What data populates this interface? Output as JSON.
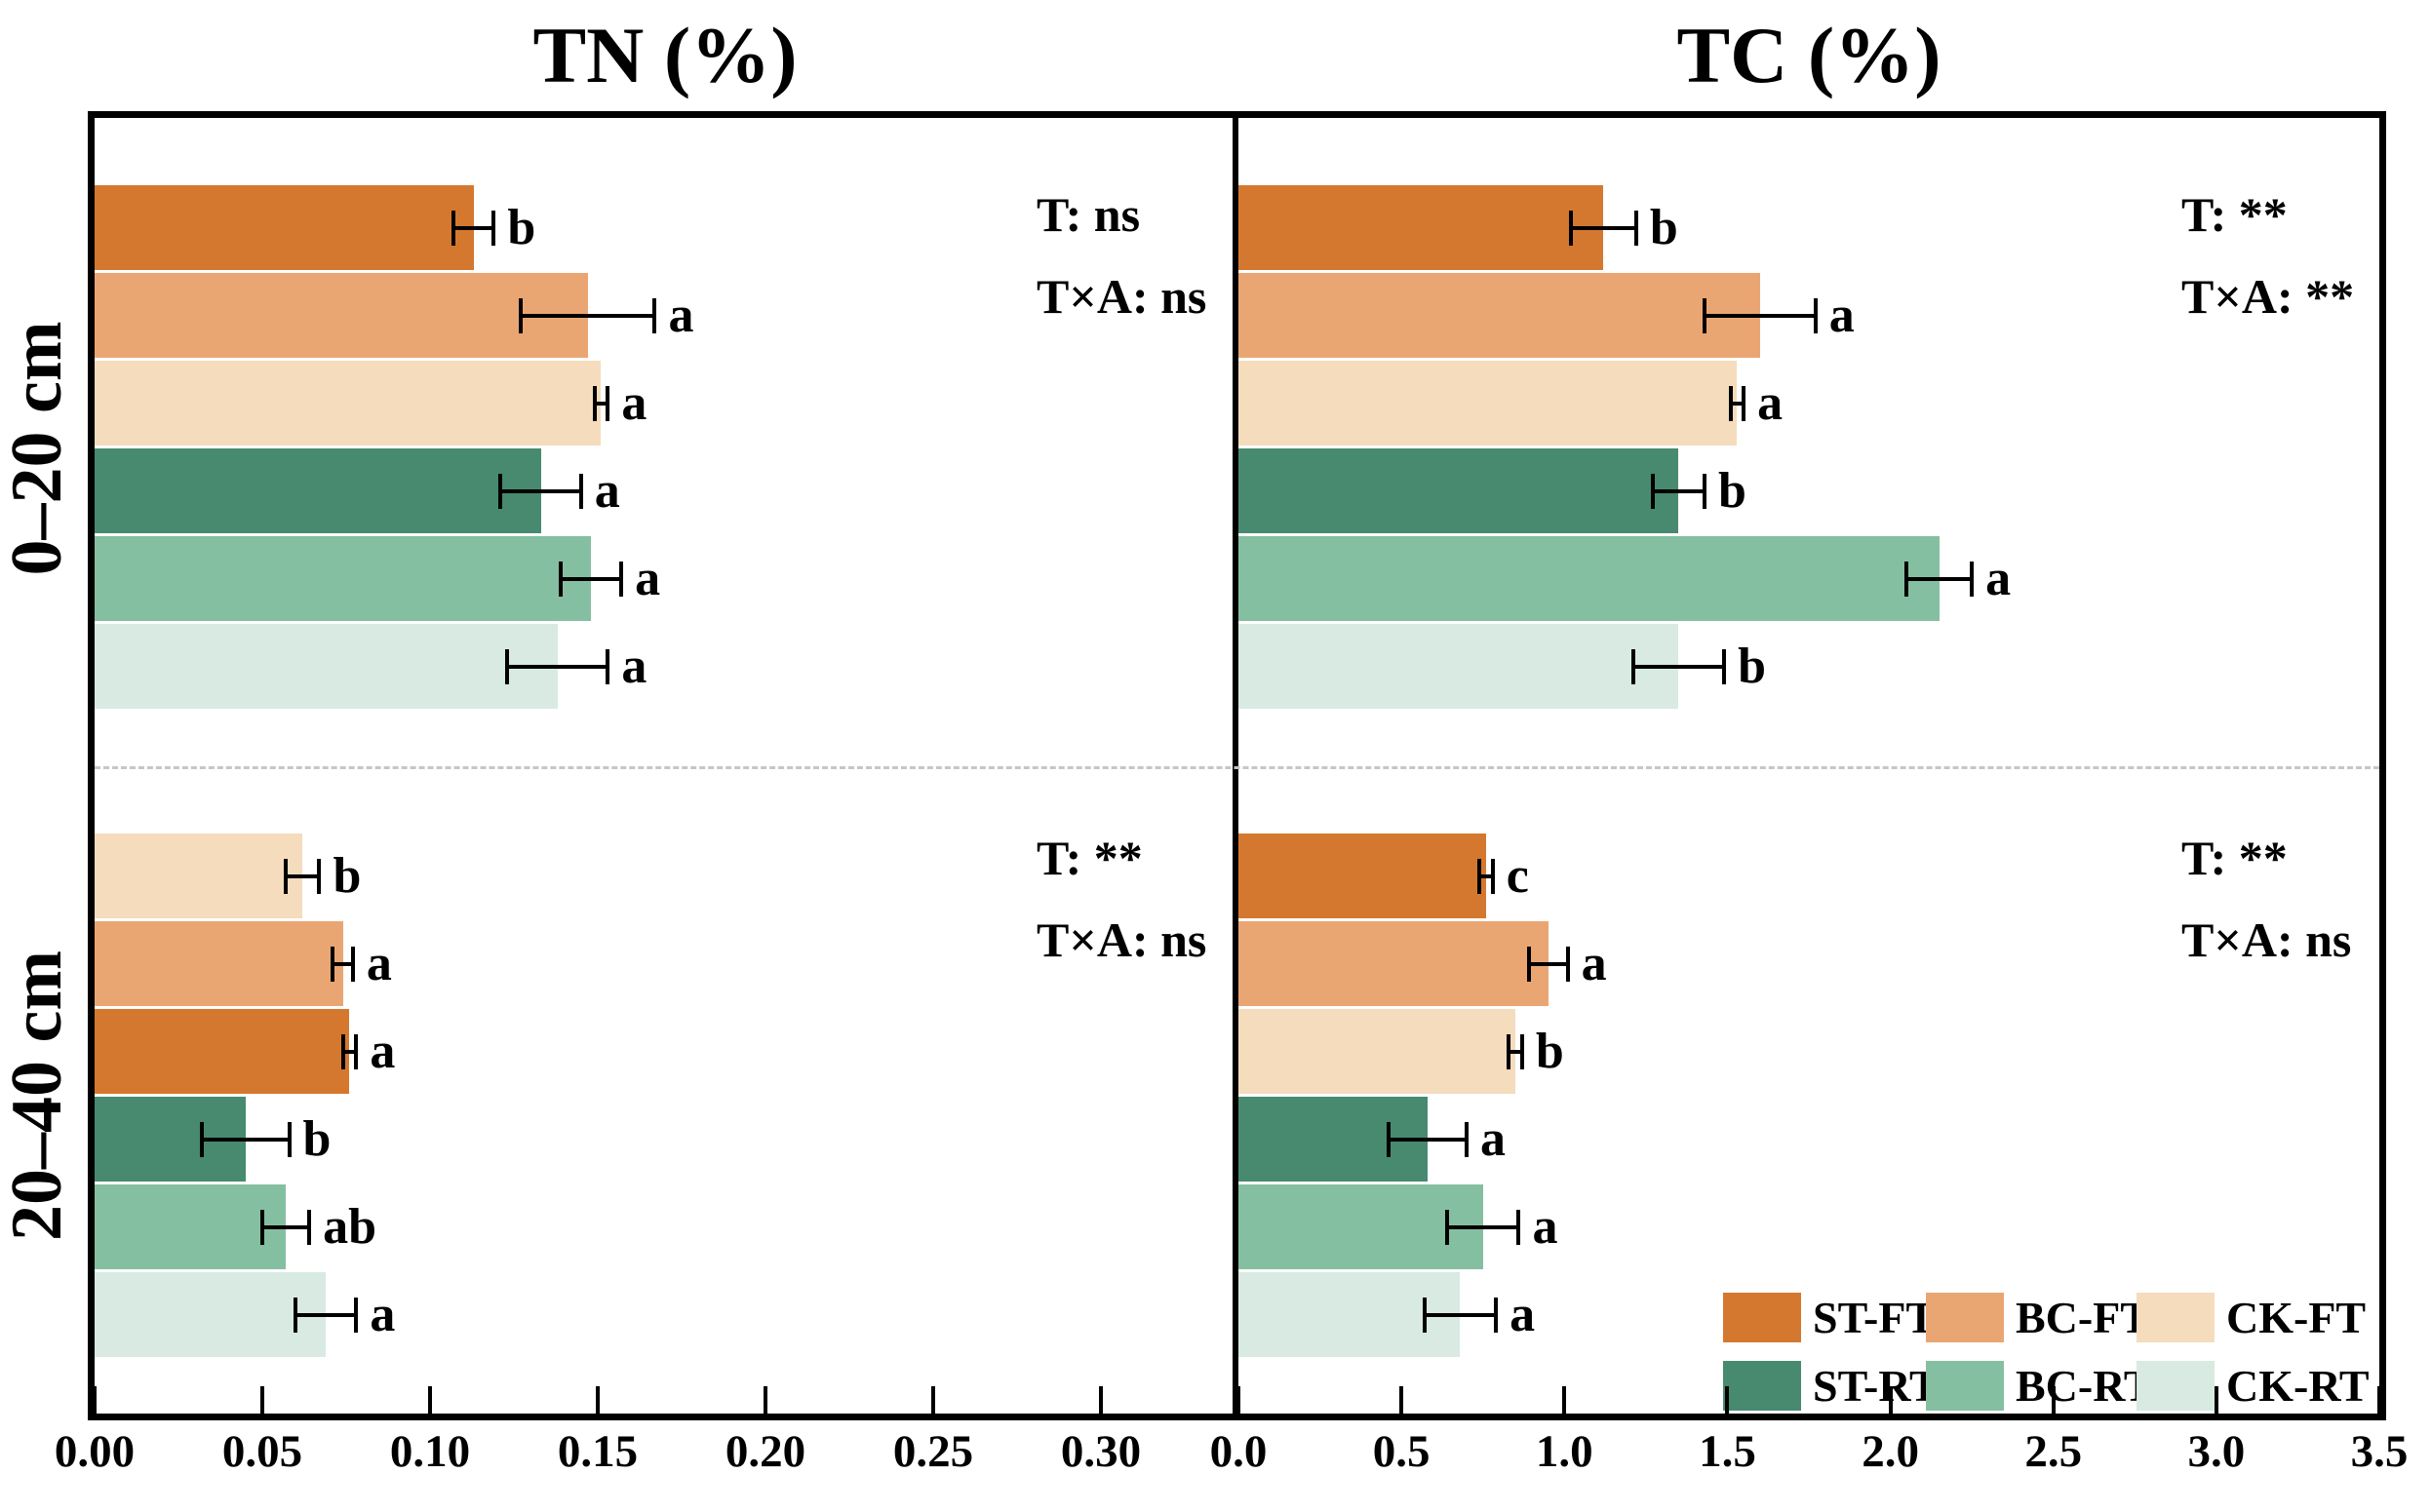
{
  "chart_data": {
    "type": "bar",
    "orientation": "horizontal",
    "grid": false,
    "y_group_labels": [
      "0–20 cm",
      "20–40 cm"
    ],
    "series_colors": {
      "ST-FT": "#D5782F",
      "BC-FT": "#EAA672",
      "CK-FT": "#F4DCBD",
      "ST-RT": "#478A70",
      "BC-RT": "#85BFA1",
      "CK-RT": "#D8EAE1"
    },
    "legend": {
      "position": "bottom-right-of-TC-panel",
      "rows": [
        [
          "ST-FT",
          "BC-FT",
          "CK-FT"
        ],
        [
          "ST-RT",
          "BC-RT",
          "CK-RT"
        ]
      ]
    },
    "panels": [
      {
        "title": "TN (%)",
        "xlim": [
          0,
          0.34
        ],
        "xticks": [
          {
            "v": 0.0,
            "label": "0.00"
          },
          {
            "v": 0.05,
            "label": "0.05"
          },
          {
            "v": 0.1,
            "label": "0.10"
          },
          {
            "v": 0.15,
            "label": "0.15"
          },
          {
            "v": 0.2,
            "label": "0.20"
          },
          {
            "v": 0.25,
            "label": "0.25"
          },
          {
            "v": 0.3,
            "label": "0.30"
          }
        ],
        "groups": [
          {
            "label": "0–20 cm",
            "stats": {
              "line1": "T: ns",
              "line2": "T×A: ns"
            },
            "bars": [
              {
                "series": "ST-FT",
                "value": 0.113,
                "error": 0.006,
                "letter": "b"
              },
              {
                "series": "BC-FT",
                "value": 0.147,
                "error": 0.02,
                "letter": "a"
              },
              {
                "series": "CK-FT",
                "value": 0.151,
                "error": 0.002,
                "letter": "a"
              },
              {
                "series": "ST-RT",
                "value": 0.133,
                "error": 0.012,
                "letter": "a"
              },
              {
                "series": "BC-RT",
                "value": 0.148,
                "error": 0.009,
                "letter": "a"
              },
              {
                "series": "CK-RT",
                "value": 0.138,
                "error": 0.015,
                "letter": "a"
              }
            ]
          },
          {
            "label": "20–40 cm",
            "stats": {
              "line1": "T: **",
              "line2": "T×A: ns"
            },
            "bars": [
              {
                "series": "CK-FT",
                "value": 0.062,
                "error": 0.005,
                "letter": "b"
              },
              {
                "series": "BC-FT",
                "value": 0.074,
                "error": 0.003,
                "letter": "a"
              },
              {
                "series": "ST-FT",
                "value": 0.076,
                "error": 0.002,
                "letter": "a"
              },
              {
                "series": "ST-RT",
                "value": 0.045,
                "error": 0.013,
                "letter": "b"
              },
              {
                "series": "BC-RT",
                "value": 0.057,
                "error": 0.007,
                "letter": "ab"
              },
              {
                "series": "CK-RT",
                "value": 0.069,
                "error": 0.009,
                "letter": "a"
              }
            ]
          }
        ]
      },
      {
        "title": "TC (%)",
        "xlim": [
          0,
          3.5
        ],
        "xticks": [
          {
            "v": 0.0,
            "label": "0.0"
          },
          {
            "v": 0.5,
            "label": "0.5"
          },
          {
            "v": 1.0,
            "label": "1.0"
          },
          {
            "v": 1.5,
            "label": "1.5"
          },
          {
            "v": 2.0,
            "label": "2.0"
          },
          {
            "v": 2.5,
            "label": "2.5"
          },
          {
            "v": 3.0,
            "label": "3.0"
          },
          {
            "v": 3.5,
            "label": "3.5"
          }
        ],
        "groups": [
          {
            "label": "0–20 cm",
            "stats": {
              "line1": "T: **",
              "line2": "T×A: **"
            },
            "bars": [
              {
                "series": "ST-FT",
                "value": 1.12,
                "error": 0.1,
                "letter": "b"
              },
              {
                "series": "BC-FT",
                "value": 1.6,
                "error": 0.17,
                "letter": "a"
              },
              {
                "series": "CK-FT",
                "value": 1.53,
                "error": 0.02,
                "letter": "a"
              },
              {
                "series": "ST-RT",
                "value": 1.35,
                "error": 0.08,
                "letter": "b"
              },
              {
                "series": "BC-RT",
                "value": 2.15,
                "error": 0.1,
                "letter": "a"
              },
              {
                "series": "CK-RT",
                "value": 1.35,
                "error": 0.14,
                "letter": "b"
              }
            ]
          },
          {
            "label": "20–40 cm",
            "stats": {
              "line1": "T: **",
              "line2": "T×A: ns"
            },
            "bars": [
              {
                "series": "ST-FT",
                "value": 0.76,
                "error": 0.02,
                "letter": "c"
              },
              {
                "series": "BC-FT",
                "value": 0.95,
                "error": 0.06,
                "letter": "a"
              },
              {
                "series": "CK-FT",
                "value": 0.85,
                "error": 0.02,
                "letter": "b"
              },
              {
                "series": "ST-RT",
                "value": 0.58,
                "error": 0.12,
                "letter": "a"
              },
              {
                "series": "BC-RT",
                "value": 0.75,
                "error": 0.11,
                "letter": "a"
              },
              {
                "series": "CK-RT",
                "value": 0.68,
                "error": 0.11,
                "letter": "a"
              }
            ]
          }
        ]
      }
    ]
  }
}
